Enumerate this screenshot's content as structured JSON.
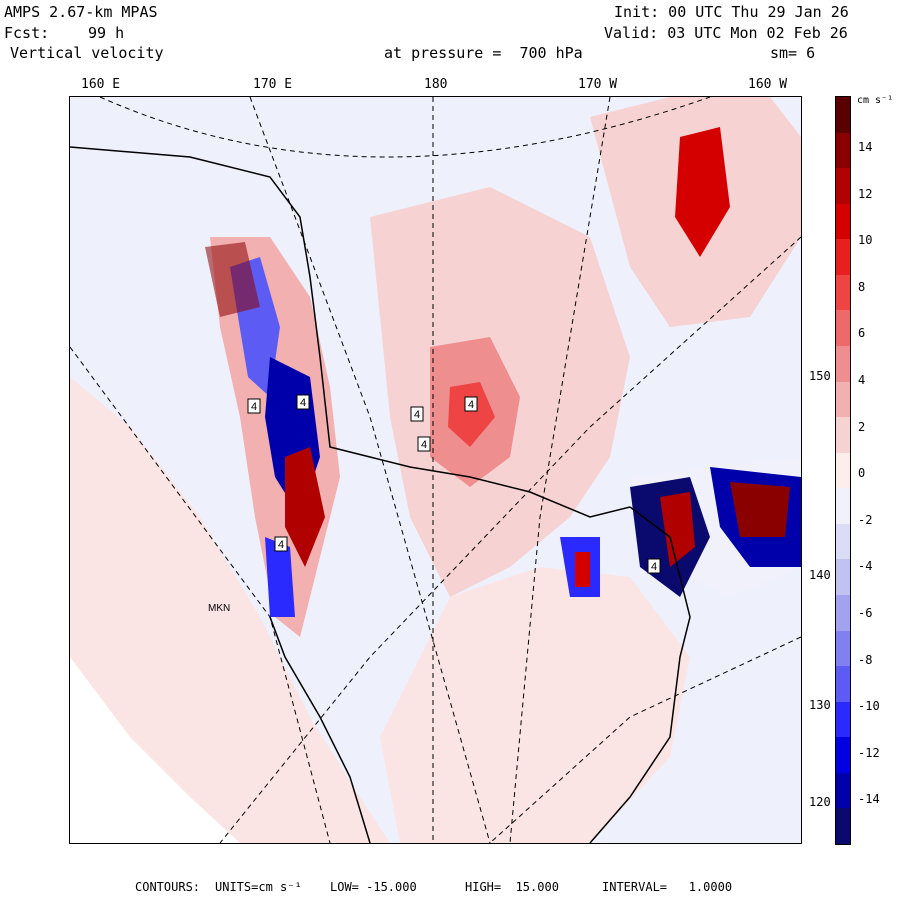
{
  "header": {
    "model": "AMPS 2.67-km MPAS",
    "fcst_label": "Fcst:",
    "fcst_value": "99 h",
    "field": "Vertical velocity",
    "init": "Init: 00 UTC Thu 29 Jan 26",
    "valid": "Valid: 03 UTC Mon 02 Feb 26",
    "level": "at pressure =  700 hPa",
    "smoothing": "sm= 6"
  },
  "map": {
    "lon_labels": [
      "160 E",
      "170 E",
      "180",
      "170 W",
      "160 W"
    ],
    "lat_labels": [
      "150 W",
      "140 W",
      "130 W",
      "120 W"
    ],
    "box_labels": [
      "4",
      "4",
      "4",
      "4",
      "4",
      "4",
      "4"
    ],
    "station_label": "MKN"
  },
  "colorbar": {
    "units": "cm s⁻¹",
    "tick_labels": [
      "14",
      "12",
      "10",
      "8",
      "6",
      "4",
      "2",
      "0",
      "-2",
      "-4",
      "-6",
      "-8",
      "-10",
      "-12",
      "-14"
    ],
    "colors": [
      "#0a0a6e",
      "#0000aa",
      "#0000e0",
      "#2a2aff",
      "#5c5cf5",
      "#8080f0",
      "#a2a2ee",
      "#c2c2f2",
      "#dcdcf7",
      "#f1f1fc",
      "#fdeeee",
      "#f7d2d2",
      "#f2b0b0",
      "#ee8e8e",
      "#ee6a6a",
      "#ee4444",
      "#e81f1f",
      "#d40000",
      "#b00000",
      "#8a0000",
      "#5a0000"
    ]
  },
  "footer": {
    "contours_label": "CONTOURS:",
    "units": "UNITS=cm s⁻¹",
    "low": "LOW= -15.000",
    "high": "HIGH=  15.000",
    "interval": "INTERVAL=   1.0000"
  }
}
